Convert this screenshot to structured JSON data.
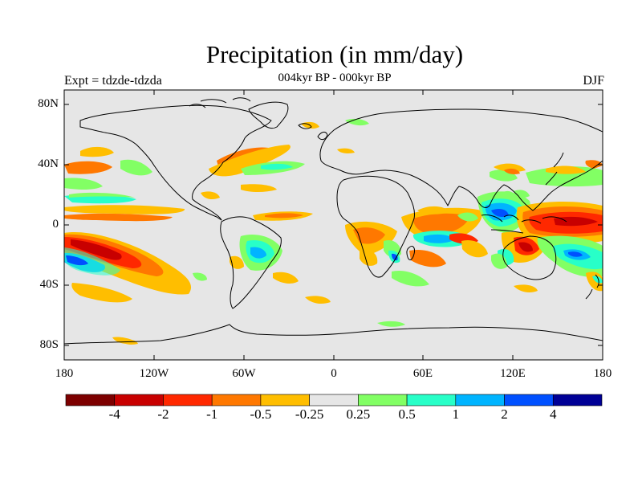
{
  "title": "Precipitation (in mm/day)",
  "left_label": "Expt = tdzde-tdzda",
  "center_label": "004kyr BP - 000kyr BP",
  "right_label": "DJF",
  "lat_ticks": [
    "80N",
    "40N",
    "0",
    "40S",
    "80S"
  ],
  "lon_ticks": [
    "180",
    "120W",
    "60W",
    "0",
    "60E",
    "120E",
    "180"
  ],
  "colorbar": {
    "labels": [
      "-4",
      "-2",
      "-1",
      "-0.5",
      "-0.25",
      "0.25",
      "0.5",
      "1",
      "2",
      "4"
    ],
    "colors": [
      "#7d0000",
      "#c80000",
      "#ff2800",
      "#ff7800",
      "#ffbe00",
      "#e6e6e6",
      "#82ff64",
      "#28ffc8",
      "#00b4ff",
      "#0050ff",
      "#000096"
    ]
  },
  "map_colors": {
    "ocean_background": "#e6e6e6",
    "coastline": "#000000"
  }
}
